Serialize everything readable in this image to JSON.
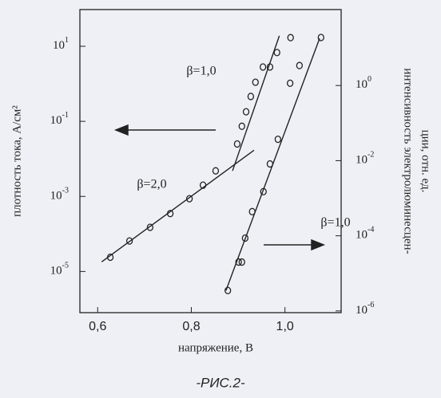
{
  "chart_data": {
    "type": "scatter",
    "xlabel": "напряжение, В",
    "ylabel": "плотность тока, А/см²",
    "y2label": [
      "интенсивность электролюминесцен-",
      "ции, отн. ед."
    ],
    "caption": "-РИС.2-",
    "annotations": [
      "β=1,0",
      "β=2,0",
      "β=1,0"
    ],
    "xlim": [
      0.562,
      1.12
    ],
    "xticks": [
      {
        "value": 0.6,
        "label": "0,6"
      },
      {
        "value": 0.8,
        "label": "0,8"
      },
      {
        "value": 1.0,
        "label": "1,0"
      }
    ],
    "ylog": true,
    "ylim": [
      8e-07,
      95
    ],
    "yticks": [
      {
        "value": 10,
        "label": "10",
        "sup": "1"
      },
      {
        "value": 0.1,
        "label": "10",
        "sup": "-1"
      },
      {
        "value": 0.001,
        "label": "10",
        "sup": "-3"
      },
      {
        "value": 1e-05,
        "label": "10",
        "sup": "-5"
      }
    ],
    "y2lim": [
      9e-07,
      105
    ],
    "y2ticks": [
      {
        "value": 1,
        "label": "10",
        "sup": "0"
      },
      {
        "value": 0.01,
        "label": "10",
        "sup": "-2"
      },
      {
        "value": 0.0001,
        "label": "10",
        "sup": "-4"
      },
      {
        "value": 1e-06,
        "label": "10",
        "sup": "-6"
      }
    ],
    "color": "#222222",
    "series": [
      {
        "mode": "markers",
        "axis": "y",
        "x": [
          0.627,
          0.668,
          0.712,
          0.755,
          0.796,
          0.825,
          0.852,
          0.898,
          0.908,
          0.917,
          0.927,
          0.937,
          0.953,
          0.968,
          0.983,
          1.012
        ],
        "values": [
          2.4e-05,
          6.5e-05,
          0.00015,
          0.00035,
          0.00087,
          0.002,
          0.0048,
          0.025,
          0.074,
          0.18,
          0.46,
          1.1,
          2.8,
          2.8,
          6.8,
          17
        ]
      },
      {
        "mode": "markers",
        "axis": "y2",
        "x": [
          0.878,
          0.901,
          0.908,
          0.915,
          0.93,
          0.954,
          0.968,
          0.985,
          1.011,
          1.031,
          1.077
        ],
        "values": [
          3.5e-06,
          2e-05,
          2e-05,
          8.7e-05,
          0.00044,
          0.0015,
          0.0082,
          0.037,
          1.15,
          3.4,
          19
        ]
      },
      {
        "mode": "line",
        "axis": "y",
        "x": [
          0.6085,
          0.934
        ],
        "values": [
          1.8e-05,
          0.017
        ]
      },
      {
        "mode": "line",
        "axis": "y",
        "x": [
          0.888,
          0.988
        ],
        "values": [
          0.0048,
          19
        ]
      },
      {
        "mode": "line",
        "axis": "y2",
        "x": [
          0.874,
          1.074
        ],
        "values": [
          3.5e-06,
          18
        ]
      }
    ]
  }
}
